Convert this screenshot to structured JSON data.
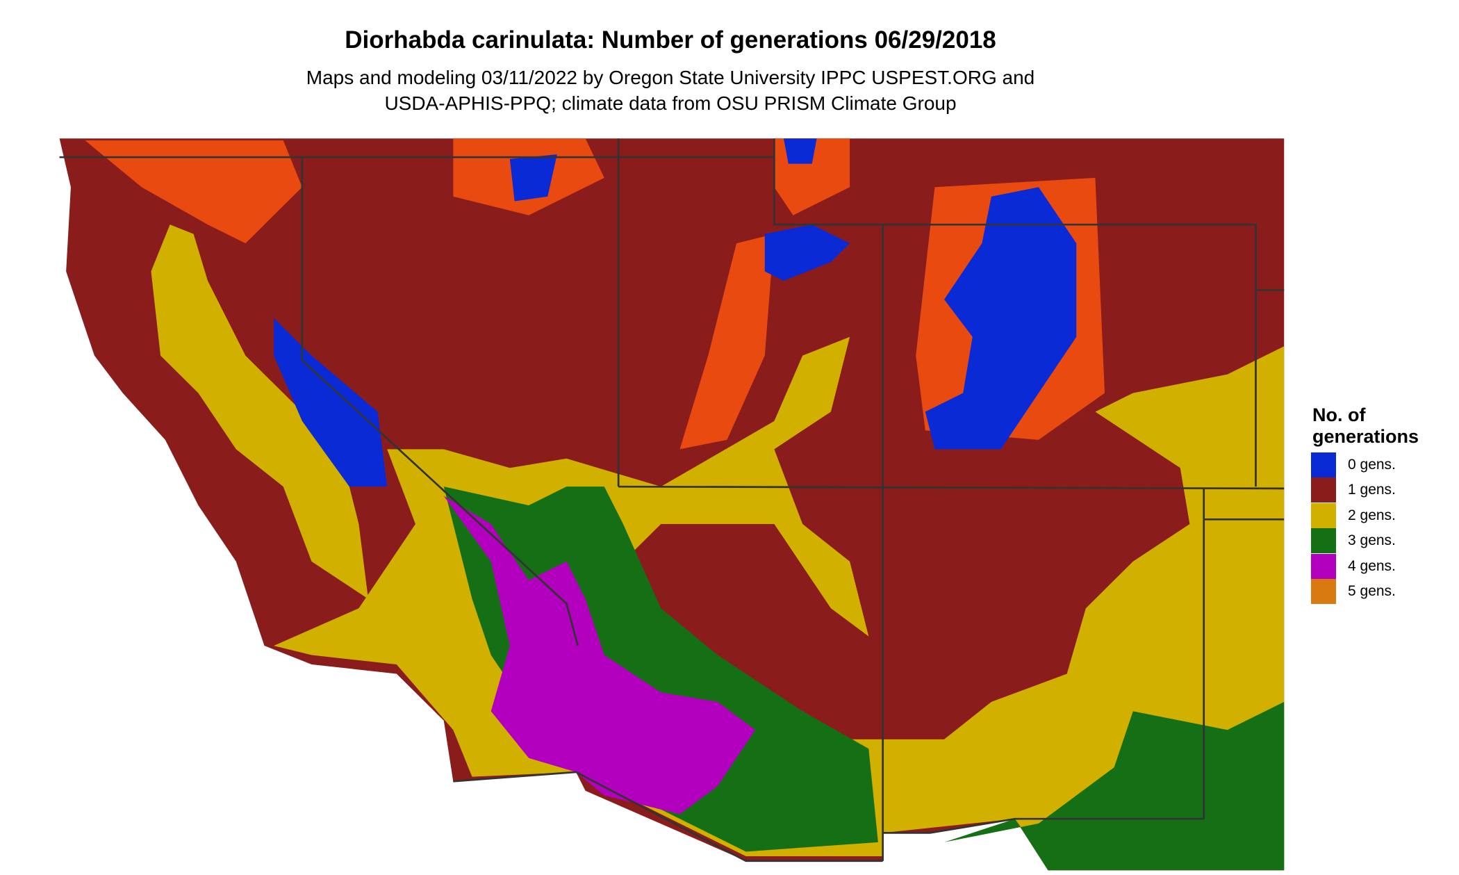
{
  "title": "Diorhabda carinulata: Number of generations 06/29/2018",
  "subtitle": [
    "Maps and modeling 03/11/2022 by Oregon State University IPPC USPEST.ORG and",
    "USDA-APHIS-PPQ; climate data from OSU PRISM Climate Group"
  ],
  "legend": {
    "title": [
      "No. of",
      "generations"
    ],
    "items": [
      {
        "label": "0 gens.",
        "color": "#0a2ad6"
      },
      {
        "label": "1 gens.",
        "color": "#8b1c1c"
      },
      {
        "label": "2 gens.",
        "color": "#d1b000"
      },
      {
        "label": "3 gens.",
        "color": "#157015"
      },
      {
        "label": "4 gens.",
        "color": "#b300bf"
      },
      {
        "label": "5 gens.",
        "color": "#d97a10"
      }
    ]
  }
}
